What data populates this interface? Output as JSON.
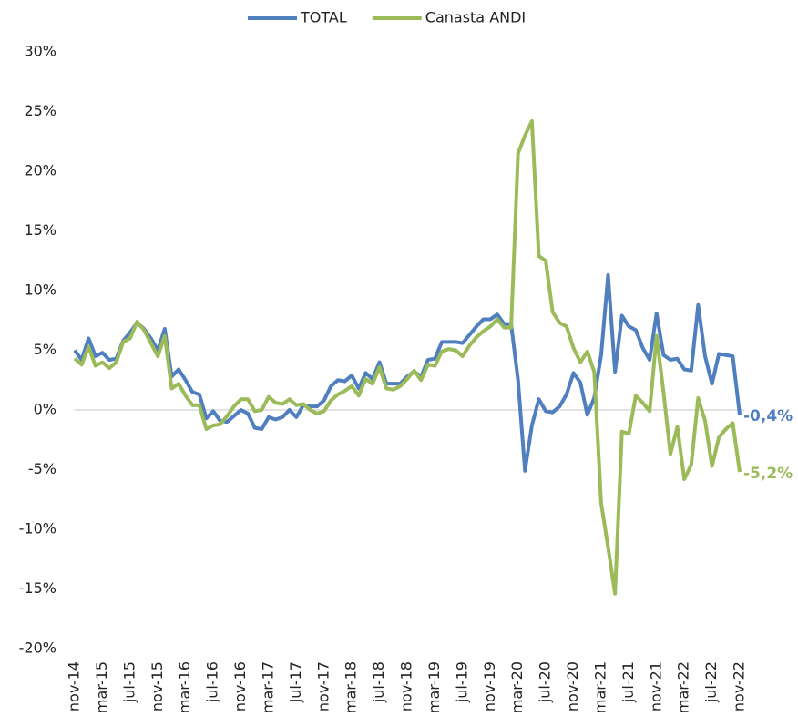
{
  "chart_data": {
    "type": "line",
    "categories": [
      "nov-14",
      null,
      null,
      null,
      "mar-15",
      null,
      null,
      null,
      "jul-15",
      null,
      null,
      null,
      "nov-15",
      null,
      null,
      null,
      "mar-16",
      null,
      null,
      null,
      "jul-16",
      null,
      null,
      null,
      "nov-16",
      null,
      null,
      null,
      "mar-17",
      null,
      null,
      null,
      "jul-17",
      null,
      null,
      null,
      "nov-17",
      null,
      null,
      null,
      "mar-18",
      null,
      null,
      null,
      "jul-18",
      null,
      null,
      null,
      "nov-18",
      null,
      null,
      null,
      "mar-19",
      null,
      null,
      null,
      "jul-19",
      null,
      null,
      null,
      "nov-19",
      null,
      null,
      null,
      "mar-20",
      null,
      null,
      null,
      "jul-20",
      null,
      null,
      null,
      "nov-20",
      null,
      null,
      null,
      "mar-21",
      null,
      null,
      null,
      "jul-21",
      null,
      null,
      null,
      "nov-21",
      null,
      null,
      null,
      "mar-22",
      null,
      null,
      null,
      "jul-22",
      null,
      null,
      null,
      "nov-22"
    ],
    "series": [
      {
        "name": "TOTAL",
        "color": "#4f7fbf",
        "values": [
          5.0,
          4.2,
          6.0,
          4.5,
          4.8,
          4.2,
          4.3,
          5.8,
          6.5,
          7.3,
          6.8,
          6.0,
          5.0,
          6.8,
          2.8,
          3.4,
          2.5,
          1.5,
          1.3,
          -0.7,
          -0.1,
          -0.9,
          -1.0,
          -0.5,
          0,
          -0.3,
          -1.5,
          -1.6,
          -0.6,
          -0.8,
          -0.6,
          0,
          -0.6,
          0.4,
          0.3,
          0.3,
          0.8,
          2.0,
          2.5,
          2.4,
          2.9,
          1.8,
          3.1,
          2.6,
          4.0,
          2.2,
          2.2,
          2.2,
          2.8,
          3.2,
          2.8,
          4.2,
          4.3,
          5.7,
          5.7,
          5.7,
          5.6,
          6.3,
          7.0,
          7.6,
          7.6,
          8.0,
          7.2,
          7.2,
          2.5,
          -5.1,
          -1.3,
          0.9,
          -0.1,
          -0.2,
          0.3,
          1.3,
          3.1,
          2.3,
          -0.4,
          1.0,
          4.6,
          11.3,
          3.2,
          7.9,
          7.0,
          6.7,
          5.2,
          4.2,
          8.1,
          4.6,
          4.2,
          4.3,
          3.4,
          3.3,
          8.8,
          4.5,
          2.2,
          4.7,
          4.6,
          4.5,
          -0.4
        ],
        "value_labels": [
          null,
          null,
          null,
          null,
          null,
          null,
          null,
          null,
          null,
          null,
          null,
          null,
          null,
          null,
          null,
          null,
          null,
          null,
          null,
          null,
          null,
          null,
          null,
          null,
          null,
          null,
          null,
          null,
          null,
          null,
          null,
          null,
          null,
          null,
          null,
          null,
          null,
          null,
          null,
          null,
          null,
          null,
          null,
          null,
          null,
          null,
          null,
          null,
          null,
          null,
          null,
          null,
          null,
          null,
          null,
          null,
          null,
          null,
          null,
          null,
          null,
          null,
          null,
          null,
          null,
          null,
          null,
          null,
          null,
          null,
          null,
          null,
          null,
          null,
          null,
          null,
          null,
          null,
          null,
          null,
          null,
          null,
          null,
          null,
          null,
          null,
          null,
          null,
          null,
          null,
          null,
          null,
          null,
          null,
          null,
          null,
          "-0,4%"
        ]
      },
      {
        "name": "Canasta ANDI",
        "color": "#9bbb59",
        "values": [
          4.3,
          3.8,
          5.3,
          3.7,
          4.0,
          3.5,
          4.0,
          5.7,
          6.0,
          7.4,
          6.7,
          5.6,
          4.5,
          6.2,
          1.8,
          2.2,
          1.2,
          0.4,
          0.4,
          -1.6,
          -1.3,
          -1.2,
          -0.5,
          0.3,
          0.9,
          0.9,
          -0.1,
          0,
          1.1,
          0.6,
          0.5,
          0.9,
          0.4,
          0.5,
          0,
          -0.3,
          -0.1,
          0.8,
          1.3,
          1.6,
          2.0,
          1.2,
          2.6,
          2.2,
          3.6,
          1.8,
          1.7,
          2.0,
          2.6,
          3.3,
          2.5,
          3.8,
          3.7,
          4.9,
          5.1,
          5.0,
          4.5,
          5.4,
          6.1,
          6.6,
          7.0,
          7.6,
          6.9,
          6.9,
          21.5,
          23.0,
          24.2,
          12.9,
          12.5,
          8.2,
          7.3,
          7.0,
          5.2,
          4.0,
          4.9,
          3.2,
          -7.8,
          -11.5,
          -15.4,
          -1.8,
          -2.0,
          1.2,
          0.6,
          -0.1,
          6.2,
          1.5,
          -3.7,
          -1.4,
          -5.8,
          -4.6,
          1.0,
          -0.9,
          -4.7,
          -2.3,
          -1.6,
          -1.1,
          -5.2
        ],
        "value_labels": [
          null,
          null,
          null,
          null,
          null,
          null,
          null,
          null,
          null,
          null,
          null,
          null,
          null,
          null,
          null,
          null,
          null,
          null,
          null,
          null,
          null,
          null,
          null,
          null,
          null,
          null,
          null,
          null,
          null,
          null,
          null,
          null,
          null,
          null,
          null,
          null,
          null,
          null,
          null,
          null,
          null,
          null,
          null,
          null,
          null,
          null,
          null,
          null,
          null,
          null,
          null,
          null,
          null,
          null,
          null,
          null,
          null,
          null,
          null,
          null,
          null,
          null,
          null,
          null,
          null,
          null,
          null,
          null,
          null,
          null,
          null,
          null,
          null,
          null,
          null,
          null,
          null,
          null,
          null,
          null,
          null,
          null,
          null,
          null,
          null,
          null,
          null,
          null,
          null,
          null,
          null,
          null,
          null,
          null,
          null,
          null,
          "-5,2%"
        ]
      }
    ],
    "ylim": [
      -20,
      30
    ],
    "yticks": [
      {
        "value": -20,
        "label": "-20%"
      },
      {
        "value": -15,
        "label": "-15%"
      },
      {
        "value": -10,
        "label": "-10%"
      },
      {
        "value": -5,
        "label": "-5%"
      },
      {
        "value": 0,
        "label": "0%"
      },
      {
        "value": 5,
        "label": "5%"
      },
      {
        "value": 10,
        "label": "10%"
      },
      {
        "value": 15,
        "label": "15%"
      },
      {
        "value": 20,
        "label": "20%"
      },
      {
        "value": 25,
        "label": "25%"
      },
      {
        "value": 30,
        "label": "30%"
      }
    ],
    "legend": "top"
  }
}
